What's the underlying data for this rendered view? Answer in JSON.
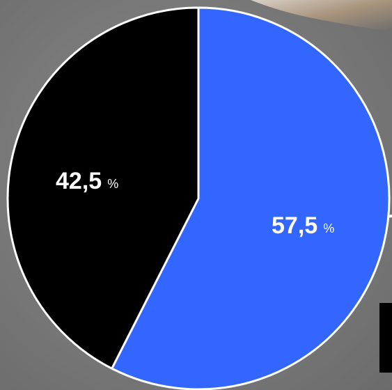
{
  "chart_data": {
    "type": "pie",
    "categories": [
      null,
      null
    ],
    "values": [
      57.5,
      42.5
    ],
    "value_labels": [
      "57,5",
      "42,5"
    ],
    "value_suffix": "%",
    "colors": [
      "#3366ff",
      "#000000"
    ],
    "start_angle": 0,
    "direction": "clockwise"
  }
}
